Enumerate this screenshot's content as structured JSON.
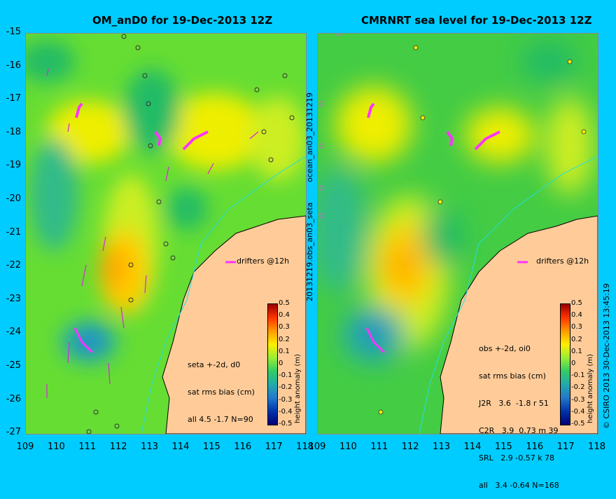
{
  "left_panel": {
    "title": "OM_anD0 for 19-Dec-2013 12Z",
    "drifters_label": "drifters @12h",
    "stats": [
      "seta +-2d, d0",
      "sat rms bias (cm)",
      "all 4.5 -1.7 N=90"
    ]
  },
  "right_panel": {
    "title": "CMRNRT sea level  for 19-Dec-2013 12Z",
    "drifters_label": "drifters @12h",
    "stats": [
      "obs +-2d, oi0",
      "sat rms bias (cm)",
      "J2R   3.6  -1.8 r 51",
      "C2R   3.9  0.73 m 39",
      "SRL   2.9 -0.57 k 78",
      "all   3.4 -0.64 N=168"
    ]
  },
  "axes": {
    "y_ticks": [
      "-15",
      "-16",
      "-17",
      "-18",
      "-19",
      "-20",
      "-21",
      "-22",
      "-23",
      "-24",
      "-25",
      "-26",
      "-27"
    ],
    "x_ticks": [
      "109",
      "110",
      "111",
      "112",
      "113",
      "114",
      "115",
      "116",
      "117",
      "118"
    ]
  },
  "colorbar": {
    "ticks": [
      "0.5",
      "0.4",
      "0.3",
      "0.2",
      "0.1",
      "0",
      "-0.1",
      "-0.2",
      "-0.3",
      "-0.4",
      "-0.5"
    ],
    "label": "height anomaly (m)"
  },
  "side_text": {
    "left_vertical": "20131219.obs_an03_seta",
    "left_vertical_top": "ocean_an03_20131219",
    "right_vertical": "© CSIRO 2013   30-Dec-2013 13:45:19"
  },
  "colors": {
    "background": "#00ccff",
    "land": "#ffcc99",
    "drifter": "#ff33ff",
    "track": "#22dddd"
  }
}
